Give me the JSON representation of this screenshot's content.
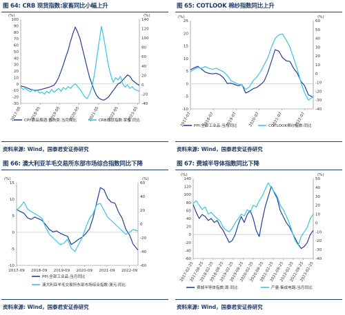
{
  "chart_data": [
    {
      "type": "line",
      "title": "图 64: CRB 现货指数:家畜同比小幅上升",
      "left_unit": "(%)",
      "right_unit": "(%)",
      "left_ticks": [
        "-30",
        "-20",
        "-10",
        "0",
        "10",
        "20",
        "30",
        "40",
        "50",
        "60",
        "70",
        "80",
        "90",
        "100"
      ],
      "right_ticks": [
        "-40",
        "-20",
        "0",
        "20",
        "40",
        "60",
        "80",
        "100",
        "120",
        "140"
      ],
      "x_ticks": [
        "2017-05",
        "2018-05",
        "2019-05",
        "2020-05",
        "2021-05",
        "2022-05",
        "2023-05"
      ],
      "ylim_left": [
        -30,
        100
      ],
      "ylim_right": [
        -40,
        140
      ],
      "source": "资料来源: Wind，国泰君安证券研究",
      "series": [
        {
          "name": "CPI:食品烟酒:畜肉类:当月同比",
          "axis": "left",
          "color": "#1f3f96",
          "x": [
            0,
            0.04,
            0.08,
            0.12,
            0.16,
            0.2,
            0.24,
            0.28,
            0.3,
            0.32,
            0.34,
            0.36,
            0.38,
            0.4,
            0.42,
            0.44,
            0.46,
            0.48,
            0.5,
            0.52,
            0.54,
            0.56,
            0.58,
            0.6,
            0.62,
            0.64,
            0.66,
            0.68,
            0.7,
            0.72,
            0.74,
            0.76,
            0.78,
            0.8,
            0.82,
            0.84,
            0.86,
            0.88,
            0.9,
            0.92,
            0.94,
            0.96,
            0.98,
            1
          ],
          "values": [
            -3,
            -5,
            -8,
            -10,
            -9,
            -7,
            -5,
            -2,
            3,
            10,
            20,
            30,
            42,
            52,
            66,
            78,
            88,
            80,
            70,
            55,
            40,
            25,
            10,
            0,
            -10,
            -18,
            -22,
            -24,
            -25,
            -23,
            -20,
            -15,
            -10,
            -5,
            0,
            2,
            6,
            10,
            14,
            12,
            6,
            3,
            0,
            -2
          ]
        },
        {
          "name": "CRB现货指数:家畜:同比",
          "axis": "right",
          "color": "#35c4e6",
          "x": [
            0,
            0.02,
            0.04,
            0.06,
            0.08,
            0.1,
            0.12,
            0.14,
            0.16,
            0.18,
            0.2,
            0.22,
            0.24,
            0.26,
            0.28,
            0.3,
            0.32,
            0.34,
            0.36,
            0.38,
            0.4,
            0.42,
            0.44,
            0.46,
            0.48,
            0.5,
            0.52,
            0.54,
            0.56,
            0.58,
            0.6,
            0.62,
            0.64,
            0.66,
            0.68,
            0.7,
            0.72,
            0.74,
            0.76,
            0.78,
            0.8,
            0.82,
            0.84,
            0.86,
            0.88,
            0.9,
            0.92,
            0.94,
            0.96,
            0.98,
            1
          ],
          "values": [
            -5,
            -10,
            -8,
            -12,
            -15,
            -10,
            -14,
            -12,
            -18,
            -16,
            -20,
            -14,
            -18,
            -10,
            -16,
            -12,
            -8,
            -14,
            -6,
            -10,
            -4,
            -8,
            -2,
            2,
            -4,
            -10,
            -18,
            -26,
            -30,
            -20,
            -5,
            20,
            55,
            90,
            125,
            100,
            70,
            40,
            20,
            5,
            15,
            10,
            18,
            2,
            -5,
            0,
            -8,
            -4,
            -10,
            -12,
            -14
          ]
        }
      ]
    },
    {
      "type": "line",
      "title": "图 65: COTLOOK 棉纱指数同比上升",
      "left_unit": "(%)",
      "right_unit": "(%)",
      "left_ticks": [
        "-10",
        "-5",
        "0",
        "5",
        "10",
        "15",
        "20",
        "25"
      ],
      "right_ticks": [
        "-40",
        "-30",
        "-20",
        "-10",
        "0",
        "10",
        "20",
        "30",
        "40",
        "50",
        "60"
      ],
      "x_ticks": [
        "2017-07",
        "2018-07",
        "2019-07",
        "2020-07",
        "2021-07",
        "2022-07"
      ],
      "ylim_left": [
        -10,
        25
      ],
      "ylim_right": [
        -40,
        60
      ],
      "source": "资料来源: Wind，国泰君安证券研究",
      "series": [
        {
          "name": "PPI:全部工业品:当月同比",
          "axis": "left",
          "color": "#1f3f96",
          "x": [
            0,
            0.03,
            0.06,
            0.09,
            0.12,
            0.15,
            0.18,
            0.21,
            0.24,
            0.27,
            0.3,
            0.33,
            0.36,
            0.39,
            0.42,
            0.45,
            0.48,
            0.51,
            0.54,
            0.57,
            0.6,
            0.63,
            0.66,
            0.69,
            0.72,
            0.75,
            0.78,
            0.81,
            0.84,
            0.87,
            0.9,
            0.93,
            0.96,
            1
          ],
          "values": [
            5.5,
            6.3,
            6.9,
            5.8,
            4.6,
            4.1,
            3.9,
            4.1,
            3.6,
            2.3,
            0.1,
            0.2,
            -0.3,
            -0.8,
            -0.4,
            -3.7,
            -3,
            -2,
            -1.5,
            -0.4,
            1,
            4.4,
            9,
            13.5,
            12.9,
            10.3,
            9.1,
            8.8,
            6.1,
            4.2,
            0.9,
            -0.8,
            -4.4,
            -5.4
          ]
        },
        {
          "name": "COTLOOK棉纱指数:同比",
          "axis": "right",
          "color": "#35c4e6",
          "x": [
            0,
            0.03,
            0.06,
            0.09,
            0.12,
            0.15,
            0.18,
            0.21,
            0.24,
            0.27,
            0.3,
            0.33,
            0.36,
            0.39,
            0.42,
            0.45,
            0.48,
            0.51,
            0.54,
            0.57,
            0.6,
            0.63,
            0.66,
            0.69,
            0.72,
            0.75,
            0.78,
            0.81,
            0.84,
            0.87,
            0.9,
            0.93,
            0.96,
            1
          ],
          "values": [
            2,
            5,
            7,
            6,
            8,
            6,
            5,
            6,
            4,
            2,
            -2,
            -8,
            -10,
            -12,
            -13,
            -18,
            -15,
            -8,
            -4,
            2,
            10,
            18,
            30,
            40,
            44,
            45,
            38,
            30,
            18,
            5,
            -10,
            -22,
            -30,
            -26
          ]
        }
      ]
    },
    {
      "type": "line",
      "title": "图 66: 澳大利亚羊毛交易所东部市场综合指数同比下降",
      "left_unit": "(%)",
      "right_unit": "(%)",
      "left_ticks": [
        "-10",
        "-5",
        "0",
        "5",
        "10",
        "15"
      ],
      "right_ticks": [
        "-60",
        "-40",
        "-20",
        "0",
        "20",
        "40",
        "60"
      ],
      "x_ticks": [
        "2017-09",
        "2018-09",
        "2019-09",
        "2020-09",
        "2021-09",
        "2022-09"
      ],
      "ylim_left": [
        -10,
        15
      ],
      "ylim_right": [
        -60,
        60
      ],
      "source": "资料来源: Wind，国泰君安证券研究",
      "series": [
        {
          "name": "PPI:全部工业品:当月同比",
          "axis": "left",
          "color": "#1f3f96",
          "x": [
            0,
            0.03,
            0.06,
            0.09,
            0.12,
            0.15,
            0.18,
            0.21,
            0.24,
            0.27,
            0.3,
            0.33,
            0.36,
            0.39,
            0.42,
            0.45,
            0.48,
            0.51,
            0.54,
            0.57,
            0.6,
            0.63,
            0.66,
            0.69,
            0.72,
            0.75,
            0.78,
            0.81,
            0.84,
            0.87,
            0.9,
            0.93,
            0.96,
            1
          ],
          "values": [
            6.9,
            6.3,
            5.8,
            4.4,
            3.9,
            4.6,
            4.1,
            3.6,
            2.3,
            0.9,
            0.1,
            0.4,
            -0.3,
            -0.8,
            -1.2,
            -3.7,
            -3,
            -2.1,
            -1.5,
            -0.4,
            1,
            4.4,
            9,
            13.5,
            12.9,
            10.3,
            9.1,
            8.8,
            6.1,
            4.2,
            0.9,
            -0.8,
            -3.6,
            -5.4
          ]
        },
        {
          "name": "澳大利亚羊毛交易所东部市场综合指数:澳元:同比",
          "axis": "right",
          "color": "#35c4e6",
          "x": [
            0,
            0.03,
            0.06,
            0.09,
            0.12,
            0.15,
            0.18,
            0.21,
            0.24,
            0.27,
            0.3,
            0.33,
            0.36,
            0.39,
            0.42,
            0.45,
            0.48,
            0.51,
            0.54,
            0.57,
            0.6,
            0.63,
            0.66,
            0.69,
            0.72,
            0.75,
            0.78,
            0.81,
            0.84,
            0.87,
            0.9,
            0.93,
            0.96,
            1
          ],
          "values": [
            20,
            25,
            32,
            22,
            18,
            15,
            12,
            8,
            -5,
            -15,
            -20,
            -25,
            -30,
            -28,
            -22,
            -35,
            -40,
            -30,
            -20,
            -5,
            8,
            15,
            28,
            30,
            20,
            10,
            5,
            0,
            -5,
            -10,
            -15,
            -12,
            -8,
            -10
          ]
        }
      ]
    },
    {
      "type": "line",
      "title": "图 67: 费城半导体指数同比下降",
      "left_unit": "(%)",
      "right_unit": "(%)",
      "left_ticks": [
        "-60",
        "-40",
        "-20",
        "0",
        "20",
        "40",
        "60",
        "80",
        "100",
        "120",
        "140"
      ],
      "right_ticks": [
        "-40",
        "-30",
        "-20",
        "-10",
        "0",
        "10",
        "20",
        "30",
        "40",
        "50"
      ],
      "x_ticks": [
        "2017-02-25",
        "2017-08-25",
        "2018-02-25",
        "2018-08-25",
        "2019-02-25",
        "2019-08-25",
        "2020-02-25",
        "2020-08-25",
        "2021-02-25",
        "2021-08-25",
        "2022-02-25",
        "2022-08-25",
        "2023-02-25"
      ],
      "ylim_left": [
        -60,
        140
      ],
      "ylim_right": [
        -40,
        50
      ],
      "source": "资料来源: Wind，国泰君安证券研究",
      "series": [
        {
          "name": "费城半导体指数:周:同比",
          "axis": "left",
          "color": "#1f3f96",
          "x": [
            0,
            0.025,
            0.05,
            0.075,
            0.1,
            0.125,
            0.15,
            0.175,
            0.2,
            0.225,
            0.25,
            0.275,
            0.3,
            0.325,
            0.35,
            0.375,
            0.4,
            0.425,
            0.45,
            0.475,
            0.5,
            0.525,
            0.55,
            0.575,
            0.6,
            0.625,
            0.65,
            0.675,
            0.7,
            0.725,
            0.75,
            0.775,
            0.8,
            0.825,
            0.85,
            0.875,
            0.9,
            0.925,
            0.95,
            0.975,
            1
          ],
          "values": [
            75,
            55,
            40,
            50,
            45,
            35,
            40,
            30,
            35,
            20,
            10,
            -5,
            -20,
            -15,
            0,
            25,
            45,
            30,
            50,
            60,
            40,
            10,
            -5,
            35,
            70,
            95,
            120,
            105,
            90,
            60,
            45,
            30,
            20,
            5,
            -10,
            -25,
            -35,
            -30,
            -20,
            0,
            10
          ]
        },
        {
          "name": "产量:集成电路:当月同比",
          "axis": "right",
          "color": "#35c4e6",
          "x": [
            0,
            0.025,
            0.05,
            0.075,
            0.1,
            0.125,
            0.15,
            0.175,
            0.2,
            0.225,
            0.25,
            0.275,
            0.3,
            0.325,
            0.35,
            0.375,
            0.4,
            0.425,
            0.45,
            0.475,
            0.5,
            0.525,
            0.55,
            0.575,
            0.6,
            0.625,
            0.65,
            0.675,
            0.7,
            0.725,
            0.75,
            0.775,
            0.8,
            0.825,
            0.85,
            0.875,
            0.9,
            0.925,
            0.95,
            0.975,
            1
          ],
          "values": [
            22,
            25,
            20,
            15,
            18,
            10,
            12,
            8,
            5,
            2,
            -5,
            -8,
            -10,
            -6,
            0,
            5,
            10,
            8,
            15,
            12,
            20,
            18,
            25,
            30,
            38,
            45,
            40,
            35,
            30,
            20,
            15,
            8,
            0,
            -10,
            -20,
            -25,
            -15,
            -10,
            -5,
            5,
            10
          ]
        }
      ]
    }
  ]
}
